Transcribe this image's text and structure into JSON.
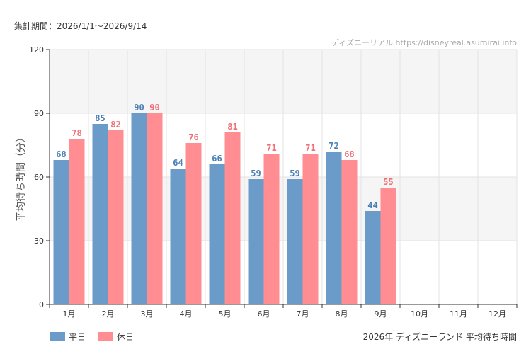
{
  "period_label": "集計期間：2026/1/1〜2026/9/14",
  "credit": "ディズニーリアル https://disneyreal.asumirai.info",
  "footer_title": "2026年 ディズニーランド 平均待ち時間",
  "colors": {
    "weekday": "#6b9bc8",
    "weekday_label": "#4a7fb5",
    "holiday": "#ff8d91",
    "holiday_label": "#f07075",
    "band": "#f5f5f5",
    "grid": "#e3e3e3",
    "axis": "#333333"
  },
  "chart_data": {
    "type": "bar",
    "ylabel": "平均待ち時間（分）",
    "ylim": [
      0,
      120
    ],
    "yticks": [
      0,
      30,
      60,
      90,
      120
    ],
    "grid": true,
    "legend_position": "bottom-left",
    "categories": [
      "1月",
      "2月",
      "3月",
      "4月",
      "5月",
      "6月",
      "7月",
      "8月",
      "9月",
      "10月",
      "11月",
      "12月"
    ],
    "series": [
      {
        "name": "平日",
        "values": [
          68,
          85,
          90,
          64,
          66,
          59,
          59,
          72,
          44,
          null,
          null,
          null
        ]
      },
      {
        "name": "休日",
        "values": [
          78,
          82,
          90,
          76,
          81,
          71,
          71,
          68,
          55,
          null,
          null,
          null
        ]
      }
    ]
  }
}
